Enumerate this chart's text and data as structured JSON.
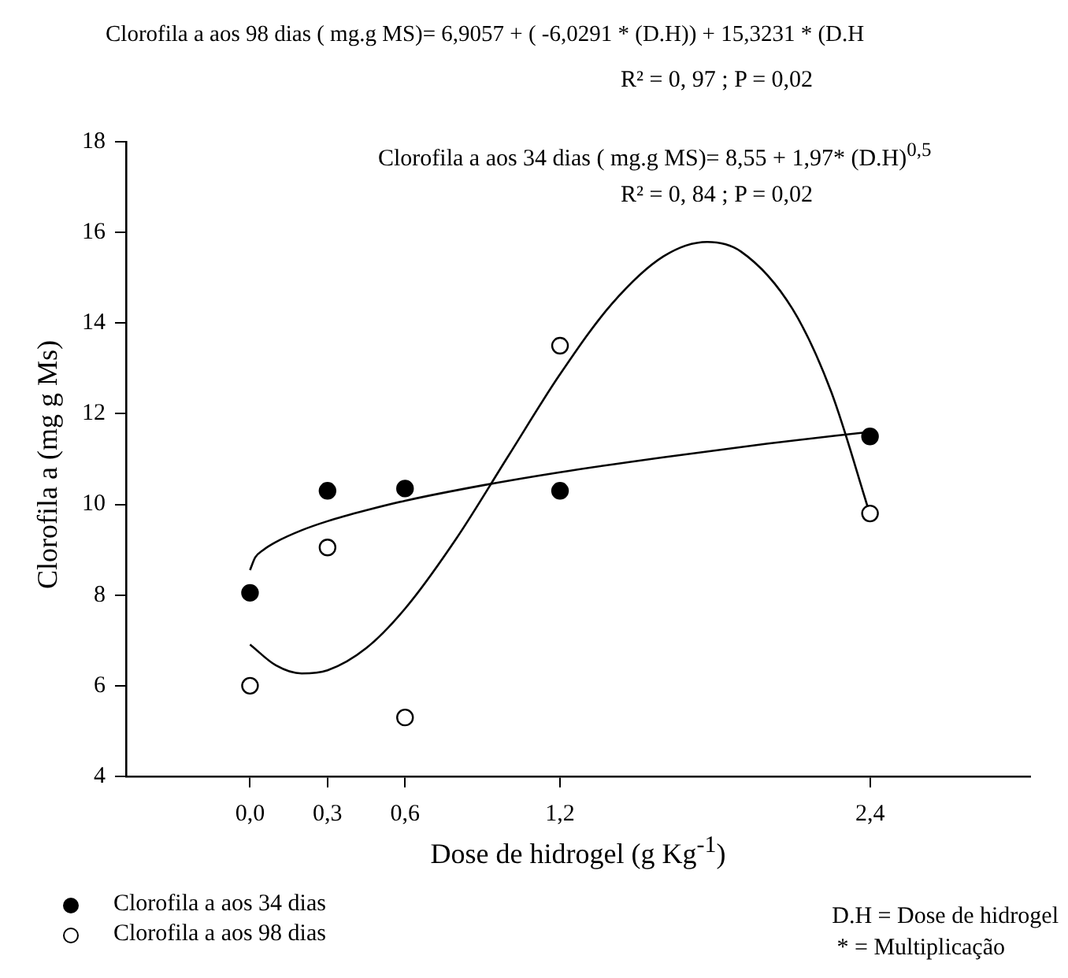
{
  "chart_data": {
    "type": "scatter",
    "xlabel": "Dose de hidrogel (g Kg$^{-1}$)",
    "ylabel": "Clorofila a (mg g Ms)",
    "xlim": [
      -0.48,
      3.02
    ],
    "xticks": [
      {
        "value": 0,
        "label": "0,0"
      },
      {
        "value": 0.3,
        "label": "0,3"
      },
      {
        "value": 0.6,
        "label": "0,6"
      },
      {
        "value": 1.2,
        "label": "1,2"
      },
      {
        "value": 2.4,
        "label": "2,4"
      }
    ],
    "ylim": [
      4,
      18
    ],
    "yticks": [
      4,
      6,
      8,
      10,
      12,
      14,
      16,
      18
    ],
    "legend": "bottom left",
    "marker": "circle",
    "annotations": [
      "Clorofila a aos 98 dias ( mg.g MS)= 6,9057 + ( -6,0291 * (D.H)) + 15,3231 * (D.H",
      "R² = 0, 97 ; P = 0,02",
      "Clorofila a  aos 34 dias ( mg.g MS)= 8,55 + 1,97* (D.H)$^{0,5}$",
      "R² = 0, 84 ; P = 0,02",
      "D.H = Dose de hidrogel",
      "* = Multiplicação"
    ],
    "series": [
      {
        "name": "Clorofila a aos 34 dias",
        "color": "#000000",
        "x": [
          0,
          0.3,
          0.6,
          1.2,
          2.4
        ],
        "values": [
          8.05,
          10.3,
          10.35,
          10.3,
          11.5
        ]
      },
      {
        "name": "Clorofila a aos 98 dias",
        "color": "#ffffff",
        "x": [
          0,
          0.3,
          0.6,
          1.2,
          2.4
        ],
        "values": [
          6.0,
          9.05,
          5.3,
          13.5,
          9.8
        ]
      },
      {
        "type": "line",
        "marker": "none",
        "color": "#000000",
        "x": [
          0,
          0.02,
          0.05,
          0.1,
          0.2,
          0.3,
          0.45,
          0.6,
          0.9,
          1.2,
          1.6,
          2.0,
          2.4
        ],
        "values": [
          8.55,
          8.83,
          8.99,
          9.17,
          9.43,
          9.63,
          9.87,
          10.08,
          10.42,
          10.71,
          11.04,
          11.34,
          11.6
        ]
      },
      {
        "type": "line",
        "marker": "none",
        "color": "#000000",
        "x": [
          0,
          0.1,
          0.2,
          0.3,
          0.45,
          0.6,
          0.8,
          1.0,
          1.2,
          1.4,
          1.6,
          1.77,
          1.9,
          2.1,
          2.25,
          2.4
        ],
        "values": [
          6.91,
          6.45,
          6.27,
          6.34,
          6.83,
          7.7,
          9.26,
          11.07,
          12.87,
          14.42,
          15.47,
          15.79,
          15.58,
          14.31,
          12.48,
          9.78
        ]
      }
    ]
  }
}
